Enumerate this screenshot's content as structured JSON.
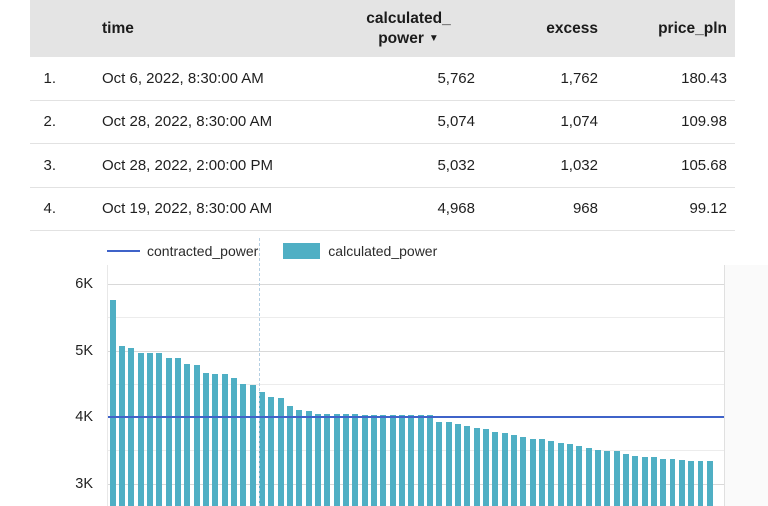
{
  "table": {
    "header": {
      "time": "time",
      "calculated_power_line1": "calculated_",
      "calculated_power_line2": "power",
      "sort_arrow": "▼",
      "excess": "excess",
      "price_pln": "price_pln"
    },
    "rows": [
      {
        "index": "1.",
        "time": "Oct 6, 2022, 8:30:00 AM",
        "calculated_power": "5,762",
        "excess": "1,762",
        "price_pln": "180.43"
      },
      {
        "index": "2.",
        "time": "Oct 28, 2022, 8:30:00 AM",
        "calculated_power": "5,074",
        "excess": "1,074",
        "price_pln": "109.98"
      },
      {
        "index": "3.",
        "time": "Oct 28, 2022, 2:00:00 PM",
        "calculated_power": "5,032",
        "excess": "1,032",
        "price_pln": "105.68"
      },
      {
        "index": "4.",
        "time": "Oct 19, 2022, 8:30:00 AM",
        "calculated_power": "4,968",
        "excess": "968",
        "price_pln": "99.12"
      }
    ]
  },
  "legend": {
    "items": [
      {
        "label": "contracted_power",
        "type": "line",
        "color": "#3f63c9"
      },
      {
        "label": "calculated_power",
        "type": "bar",
        "color": "#4fafc4"
      }
    ]
  },
  "chart_data": {
    "type": "bar",
    "title": "",
    "xlabel": "",
    "ylabel": "",
    "x_labels_visible": false,
    "grid": true,
    "legend_position": "top",
    "sorted": "descending",
    "bar_color": "#4fafc4",
    "line_color": "#3f63c9",
    "y_ticks": [
      {
        "label": "6K",
        "value": 6000
      },
      {
        "label": "5K",
        "value": 5000
      },
      {
        "label": "4K",
        "value": 4000
      },
      {
        "label": "3K",
        "value": 3000
      }
    ],
    "minor_grid_values": [
      5500,
      4500,
      3500
    ],
    "visible_y_range": [
      2660,
      6200
    ],
    "series": [
      {
        "name": "calculated_power",
        "type": "bar",
        "values": [
          5762,
          5074,
          5032,
          4968,
          4962,
          4956,
          4888,
          4882,
          4792,
          4786,
          4668,
          4652,
          4646,
          4582,
          4494,
          4486,
          4382,
          4300,
          4290,
          4172,
          4106,
          4084,
          4048,
          4044,
          4042,
          4040,
          4038,
          4036,
          4035,
          4034,
          4033,
          4032,
          4031,
          4030,
          4030,
          3924,
          3918,
          3893,
          3868,
          3842,
          3814,
          3776,
          3764,
          3732,
          3702,
          3676,
          3664,
          3639,
          3613,
          3587,
          3561,
          3536,
          3510,
          3494,
          3487,
          3451,
          3421,
          3406,
          3391,
          3375,
          3362,
          3351,
          3341,
          3336,
          3331
        ]
      },
      {
        "name": "contracted_power",
        "type": "line",
        "constant_value": 4000
      }
    ]
  }
}
